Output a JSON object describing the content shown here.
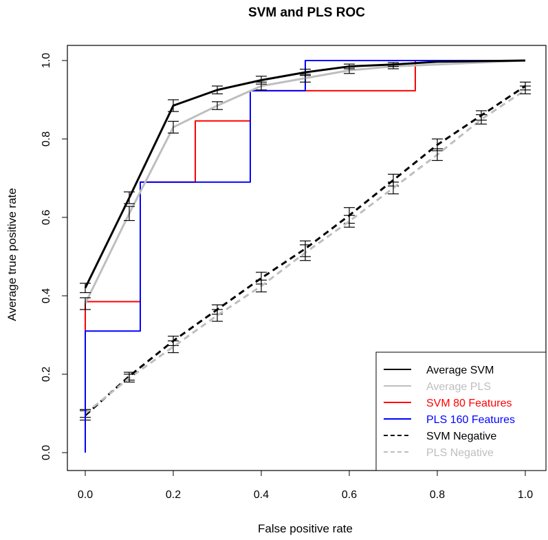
{
  "chart_data": {
    "type": "line",
    "title": "SVM and PLS ROC",
    "xlabel": "False positive rate",
    "ylabel": "Average true positive rate",
    "xlim": [
      0,
      1
    ],
    "ylim": [
      0,
      1
    ],
    "x_ticks": [
      "0.0",
      "0.2",
      "0.4",
      "0.6",
      "0.8",
      "1.0"
    ],
    "y_ticks": [
      "0.0",
      "0.2",
      "0.4",
      "0.6",
      "0.8",
      "1.0"
    ],
    "grid": false,
    "legend_position": "bottom-right",
    "series": [
      {
        "name": "Average SVM",
        "color": "#000000",
        "style": "solid",
        "x": [
          0.0,
          0.1,
          0.2,
          0.3,
          0.4,
          0.5,
          0.6,
          0.7,
          0.8,
          1.0
        ],
        "y": [
          0.42,
          0.65,
          0.885,
          0.925,
          0.95,
          0.97,
          0.985,
          0.99,
          0.997,
          1.0
        ],
        "err": [
          0.012,
          0.015,
          0.015,
          0.01,
          0.01,
          0.008,
          0.006,
          0.005,
          0.0,
          0.0
        ]
      },
      {
        "name": "Average PLS",
        "color": "#bebebe",
        "style": "solid",
        "x": [
          0.0,
          0.1,
          0.2,
          0.3,
          0.4,
          0.5,
          0.6,
          0.7,
          0.8,
          1.0
        ],
        "y": [
          0.38,
          0.61,
          0.83,
          0.885,
          0.935,
          0.955,
          0.975,
          0.985,
          0.99,
          1.0
        ],
        "err": [
          0.015,
          0.018,
          0.015,
          0.01,
          0.01,
          0.01,
          0.008,
          0.006,
          0.0,
          0.0
        ]
      },
      {
        "name": "SVM 80 Features",
        "color": "#ff0000",
        "style": "step",
        "x": [
          0.0,
          0.0,
          0.125,
          0.125,
          0.25,
          0.25,
          0.375,
          0.375,
          0.75,
          0.75,
          1.0
        ],
        "y": [
          0.31,
          0.385,
          0.385,
          0.69,
          0.69,
          0.846,
          0.846,
          0.923,
          0.923,
          1.0,
          1.0
        ]
      },
      {
        "name": "PLS 160 Features",
        "color": "#0000ff",
        "style": "step",
        "x": [
          0.0,
          0.0,
          0.125,
          0.125,
          0.375,
          0.375,
          0.5,
          0.5,
          1.0
        ],
        "y": [
          0.0,
          0.31,
          0.31,
          0.69,
          0.69,
          0.923,
          0.923,
          1.0,
          1.0
        ]
      },
      {
        "name": "SVM Negative",
        "color": "#000000",
        "style": "dashed",
        "x": [
          0.0,
          0.1,
          0.2,
          0.3,
          0.4,
          0.5,
          0.6,
          0.7,
          0.8,
          0.9,
          1.0
        ],
        "y": [
          0.095,
          0.195,
          0.285,
          0.365,
          0.445,
          0.52,
          0.605,
          0.695,
          0.785,
          0.86,
          0.935
        ],
        "err": [
          0.012,
          0.01,
          0.012,
          0.012,
          0.015,
          0.02,
          0.02,
          0.015,
          0.015,
          0.012,
          0.01
        ]
      },
      {
        "name": "PLS Negative",
        "color": "#bebebe",
        "style": "dashed",
        "x": [
          0.0,
          0.1,
          0.2,
          0.3,
          0.4,
          0.5,
          0.6,
          0.7,
          0.8,
          0.9,
          1.0
        ],
        "y": [
          0.1,
          0.19,
          0.27,
          0.35,
          0.425,
          0.51,
          0.59,
          0.675,
          0.76,
          0.85,
          0.925
        ],
        "err": [
          0.01,
          0.01,
          0.015,
          0.015,
          0.015,
          0.02,
          0.015,
          0.015,
          0.015,
          0.012,
          0.01
        ]
      }
    ]
  }
}
